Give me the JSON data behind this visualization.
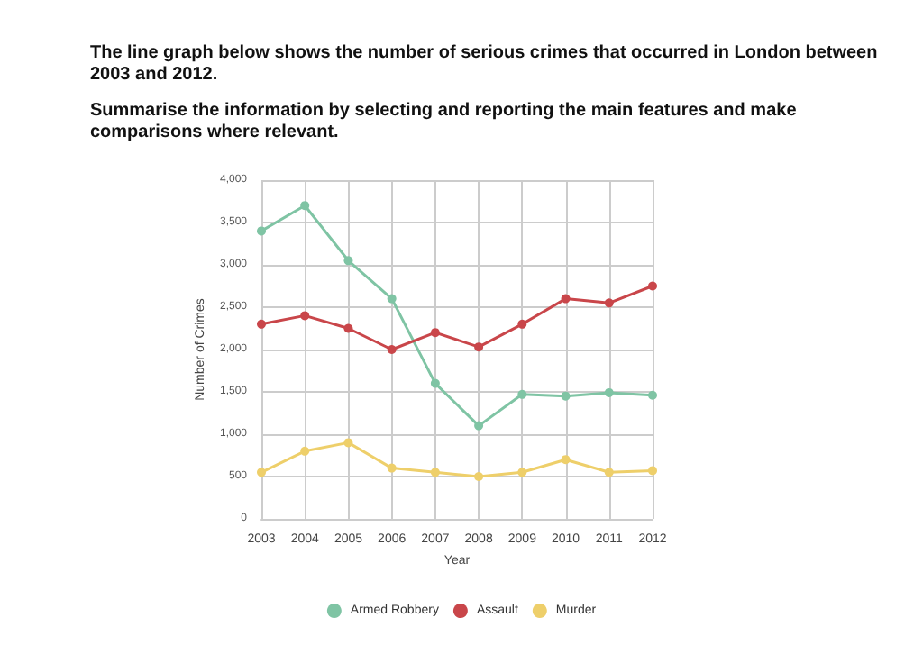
{
  "chart_data": {
    "type": "line",
    "title": "The line graph below shows the number of serious crimes that occurred in London between 2003 and 2012.",
    "subtitle": "Summarise the information by selecting and reporting the main features and make comparisons where relevant.",
    "xlabel": "Year",
    "ylabel": "Number of Crimes",
    "categories": [
      "2003",
      "2004",
      "2005",
      "2006",
      "2007",
      "2008",
      "2009",
      "2010",
      "2011",
      "2012"
    ],
    "series": [
      {
        "name": "Armed Robbery",
        "color": "#7fc4a4",
        "values": [
          3400,
          3700,
          3050,
          2600,
          1600,
          1100,
          1470,
          1450,
          1490,
          1460
        ]
      },
      {
        "name": "Assault",
        "color": "#c9464a",
        "values": [
          2300,
          2400,
          2250,
          2000,
          2200,
          2030,
          2300,
          2600,
          2550,
          2750
        ]
      },
      {
        "name": "Murder",
        "color": "#eecf6a",
        "values": [
          550,
          800,
          900,
          600,
          550,
          500,
          550,
          700,
          550,
          570
        ]
      }
    ],
    "ylim": [
      0,
      4000
    ],
    "yticks": [
      0,
      500,
      {
        "value": 1000,
        "label": "1,000"
      },
      {
        "value": 1500,
        "label": "1,500"
      },
      {
        "value": 2000,
        "label": "2,000"
      },
      {
        "value": 2500,
        "label": "2,500"
      },
      {
        "value": 3000,
        "label": "3,000"
      },
      {
        "value": 3500,
        "label": "3,500"
      },
      {
        "value": 4000,
        "label": "4,000"
      }
    ],
    "grid": true,
    "legend": "bottom",
    "marker": "circle",
    "line_style": "solid"
  }
}
